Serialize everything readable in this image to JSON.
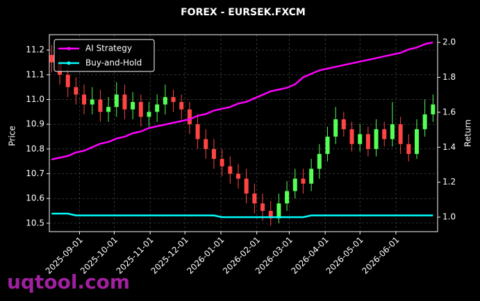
{
  "chart_data": {
    "type": "candlestick",
    "title": "FOREX - EURSEK.FXCM",
    "y_label": "Price",
    "y2_label": "Return",
    "watermark": "uqtool.com",
    "x": [
      "2025-08-08",
      "2025-08-15",
      "2025-08-22",
      "2025-08-29",
      "2025-09-05",
      "2025-09-12",
      "2025-09-19",
      "2025-09-26",
      "2025-10-03",
      "2025-10-10",
      "2025-10-17",
      "2025-10-24",
      "2025-10-31",
      "2025-11-07",
      "2025-11-14",
      "2025-11-21",
      "2025-11-28",
      "2025-12-05",
      "2025-12-12",
      "2025-12-19",
      "2025-12-26",
      "2026-01-02",
      "2026-01-09",
      "2026-01-16",
      "2026-01-23",
      "2026-01-30",
      "2026-02-06",
      "2026-02-13",
      "2026-02-20",
      "2026-02-27",
      "2026-03-06",
      "2026-03-13",
      "2026-03-20",
      "2026-03-27",
      "2026-04-03",
      "2026-04-10",
      "2026-04-17",
      "2026-04-24",
      "2026-05-01",
      "2026-05-08",
      "2026-05-15",
      "2026-05-22",
      "2026-05-29",
      "2026-06-05",
      "2026-06-12",
      "2026-06-19",
      "2026-06-26",
      "2026-07-03"
    ],
    "open": [
      11.18,
      11.15,
      11.1,
      11.05,
      11.02,
      10.98,
      11.0,
      10.95,
      10.97,
      11.02,
      10.96,
      10.99,
      10.93,
      10.95,
      10.98,
      11.01,
      10.99,
      10.96,
      10.9,
      10.84,
      10.8,
      10.76,
      10.73,
      10.7,
      10.68,
      10.62,
      10.58,
      10.55,
      10.52,
      10.58,
      10.63,
      10.68,
      10.66,
      10.72,
      10.78,
      10.85,
      10.92,
      10.88,
      10.82,
      10.86,
      10.8,
      10.88,
      10.84,
      10.9,
      10.82,
      10.78,
      10.88,
      10.94
    ],
    "high": [
      11.22,
      11.18,
      11.13,
      11.09,
      11.06,
      11.05,
      11.04,
      11.01,
      11.07,
      11.06,
      11.03,
      11.02,
      10.99,
      11.02,
      11.06,
      11.04,
      11.02,
      10.99,
      10.94,
      10.88,
      10.84,
      10.8,
      10.77,
      10.74,
      10.72,
      10.66,
      10.62,
      10.59,
      10.62,
      10.67,
      10.72,
      10.72,
      10.76,
      10.82,
      10.89,
      10.97,
      10.95,
      10.91,
      10.9,
      10.89,
      10.92,
      10.91,
      10.99,
      10.93,
      10.86,
      10.92,
      11.0,
      11.02
    ],
    "low": [
      11.11,
      11.06,
      11.01,
      10.98,
      10.94,
      10.94,
      10.91,
      10.91,
      10.93,
      10.92,
      10.92,
      10.89,
      10.89,
      10.91,
      10.94,
      10.95,
      10.92,
      10.86,
      10.8,
      10.76,
      10.72,
      10.69,
      10.66,
      10.64,
      10.58,
      10.54,
      10.51,
      10.49,
      10.5,
      10.55,
      10.6,
      10.62,
      10.63,
      10.68,
      10.75,
      10.82,
      10.85,
      10.79,
      10.79,
      10.77,
      10.77,
      10.81,
      10.81,
      10.78,
      10.75,
      10.76,
      10.85,
      10.91
    ],
    "close": [
      11.15,
      11.1,
      11.05,
      11.02,
      10.98,
      11.0,
      10.95,
      10.97,
      11.02,
      10.96,
      10.99,
      10.93,
      10.95,
      10.98,
      11.01,
      10.99,
      10.96,
      10.9,
      10.84,
      10.8,
      10.76,
      10.73,
      10.7,
      10.68,
      10.62,
      10.58,
      10.55,
      10.52,
      10.58,
      10.63,
      10.68,
      10.66,
      10.72,
      10.78,
      10.85,
      10.92,
      10.88,
      10.82,
      10.86,
      10.8,
      10.88,
      10.84,
      10.9,
      10.82,
      10.78,
      10.88,
      10.94,
      10.98
    ],
    "up_color": "#55ff55",
    "down_color": "#ff4444",
    "series": [
      {
        "name": "AI Strategy",
        "color": "#ff00ff",
        "axis": "y2",
        "values": [
          1.33,
          1.34,
          1.35,
          1.37,
          1.38,
          1.4,
          1.42,
          1.43,
          1.45,
          1.46,
          1.48,
          1.49,
          1.51,
          1.52,
          1.53,
          1.54,
          1.55,
          1.56,
          1.58,
          1.59,
          1.61,
          1.62,
          1.63,
          1.65,
          1.66,
          1.68,
          1.7,
          1.72,
          1.73,
          1.74,
          1.76,
          1.8,
          1.82,
          1.84,
          1.85,
          1.86,
          1.87,
          1.88,
          1.89,
          1.9,
          1.91,
          1.92,
          1.93,
          1.94,
          1.96,
          1.97,
          1.99,
          2.0
        ]
      },
      {
        "name": "Buy-and-Hold",
        "color": "#00ffff",
        "axis": "y2",
        "values": [
          1.02,
          1.02,
          1.02,
          1.01,
          1.01,
          1.01,
          1.01,
          1.01,
          1.01,
          1.01,
          1.01,
          1.01,
          1.01,
          1.01,
          1.01,
          1.01,
          1.01,
          1.01,
          1.01,
          1.01,
          1.01,
          1.0,
          1.0,
          1.0,
          1.0,
          1.0,
          1.0,
          1.0,
          1.0,
          1.0,
          1.0,
          1.0,
          1.01,
          1.01,
          1.01,
          1.01,
          1.01,
          1.01,
          1.01,
          1.01,
          1.01,
          1.01,
          1.01,
          1.01,
          1.01,
          1.01,
          1.01,
          1.01
        ]
      }
    ],
    "xlim": [
      "2025-08-06",
      "2026-07-07"
    ],
    "xticks": [
      "2025-09-01",
      "2025-10-01",
      "2025-11-01",
      "2025-12-01",
      "2026-01-01",
      "2026-02-01",
      "2026-03-01",
      "2026-04-01",
      "2026-05-01",
      "2026-06-01"
    ],
    "ylim": [
      10.466,
      11.262
    ],
    "yticks": [
      {
        "value": 10.5,
        "label": "10.5"
      },
      10.6,
      10.7,
      10.8,
      10.9,
      {
        "value": 11,
        "label": "11.0"
      },
      11.1,
      11.2
    ],
    "y2lim": [
      0.917,
      2.044
    ],
    "y2ticks": [
      {
        "value": 1,
        "label": "1.0"
      },
      1.2,
      1.4,
      1.6,
      1.8,
      {
        "value": 2,
        "label": "2.0"
      }
    ],
    "grid": true,
    "legend": "upper left"
  }
}
